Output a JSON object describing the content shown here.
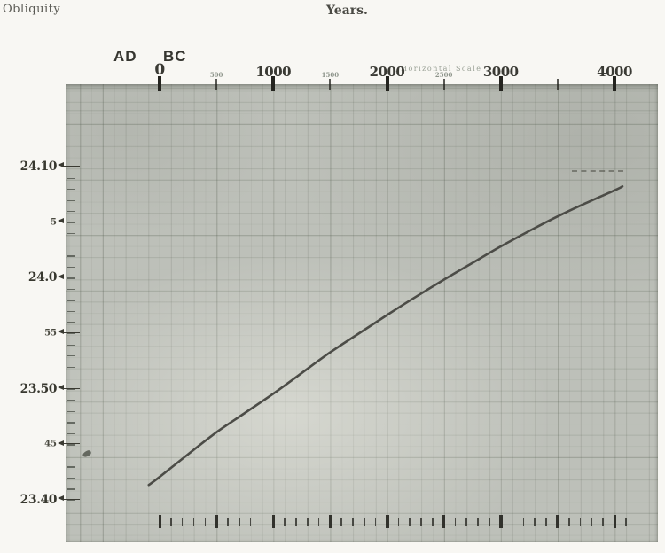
{
  "page": {
    "title_left": "Obliquity",
    "title_center": "Years."
  },
  "era_labels": {
    "ad": "AD",
    "bc": "BC"
  },
  "scale_note": "Horizontal Scale",
  "colors": {
    "paper": "#f8f7f3",
    "plot_background": "#bdc0b9",
    "grid_line": "#8f968a",
    "ink": "#35352f",
    "ink_faint": "#8d948a",
    "curve": "#4c4c47"
  },
  "chart_data": {
    "type": "line",
    "xlabel": "Years.",
    "ylabel": "Obliquity",
    "legend": "none",
    "grid": "on",
    "x_axis": {
      "unit": "years (BC increasing to the right of 0, AD to the left)",
      "range_years": [
        -200,
        4380
      ],
      "era_left_of_zero": "AD",
      "era_right_of_zero": "BC",
      "ticks": [
        {
          "year": 0,
          "label": "0",
          "size": "major"
        },
        {
          "year": 500,
          "label": "500",
          "size": "minor"
        },
        {
          "year": 1000,
          "label": "1000",
          "size": "major"
        },
        {
          "year": 1500,
          "label": "1500",
          "size": "minor"
        },
        {
          "year": 2000,
          "label": "2000",
          "size": "major"
        },
        {
          "year": 2500,
          "label": "2500",
          "size": "minor"
        },
        {
          "year": 3000,
          "label": "3000",
          "size": "major"
        },
        {
          "year": 3500,
          "label": "",
          "size": "minor"
        },
        {
          "year": 4000,
          "label": "4000",
          "size": "major"
        }
      ]
    },
    "y_axis": {
      "unit": "degrees and arcminutes of obliquity",
      "range_deg": [
        23.6667,
        24.1667
      ],
      "minor_step_arcmin": 1,
      "ticks": [
        {
          "value_deg": 24.1667,
          "label": "24.10",
          "size": "major"
        },
        {
          "value_deg": 24.0833,
          "label": "5",
          "size": "minor"
        },
        {
          "value_deg": 24.0,
          "label": "24.0",
          "size": "major"
        },
        {
          "value_deg": 23.9167,
          "label": "55",
          "size": "minor"
        },
        {
          "value_deg": 23.8333,
          "label": "23.50",
          "size": "major"
        },
        {
          "value_deg": 23.75,
          "label": "45",
          "size": "minor"
        },
        {
          "value_deg": 23.6667,
          "label": "23.40",
          "size": "major"
        }
      ]
    },
    "bottom_ruler": {
      "start_year": 0,
      "end_year": 4150,
      "minor_step": 100,
      "major_step": 500,
      "heavy_step": 1000
    },
    "series": [
      {
        "name": "obliquity-of-the-ecliptic",
        "points_year_deg": [
          [
            -95,
            23.689
          ],
          [
            0,
            23.701
          ],
          [
            250,
            23.735
          ],
          [
            500,
            23.768
          ],
          [
            750,
            23.797
          ],
          [
            1000,
            23.826
          ],
          [
            1250,
            23.857
          ],
          [
            1500,
            23.888
          ],
          [
            1750,
            23.916
          ],
          [
            2000,
            23.944
          ],
          [
            2250,
            23.971
          ],
          [
            2500,
            23.997
          ],
          [
            2750,
            24.022
          ],
          [
            3000,
            24.047
          ],
          [
            3250,
            24.07
          ],
          [
            3500,
            24.092
          ],
          [
            3750,
            24.112
          ],
          [
            4000,
            24.131
          ],
          [
            4070,
            24.137
          ]
        ]
      }
    ],
    "annotations": [
      {
        "id": "terminal-dashed-line",
        "description": "short dashed horizontal guide near upper end of curve"
      }
    ]
  }
}
